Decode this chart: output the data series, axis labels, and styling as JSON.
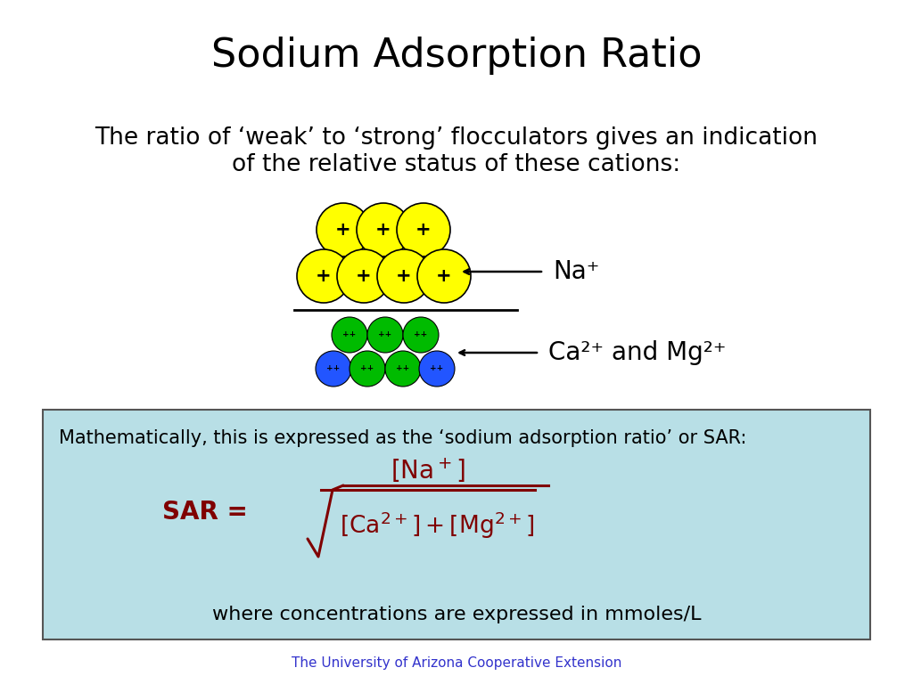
{
  "title": "Sodium Adsorption Ratio",
  "title_fontsize": 32,
  "body_text_line1": "The ratio of ‘weak’ to ‘strong’ flocculators gives an indication",
  "body_text_line2": "of the relative status of these cations:",
  "body_fontsize": 19,
  "na_label": "Na⁺",
  "ca_mg_label": "Ca²⁺ and Mg²⁺",
  "box_bg_color": "#b8dfe6",
  "box_border_color": "#555555",
  "box_text1": "Mathematically, this is expressed as the ‘sodium adsorption ratio’ or SAR:",
  "box_text2": "where concentrations are expressed in mmoles/L",
  "footer_text": "The University of Arizona Cooperative Extension",
  "footer_color": "#3333cc",
  "formula_color": "#800000",
  "yellow_color": "#ffff00",
  "green_color": "#00bb00",
  "blue_color": "#2255ff",
  "background_color": "#ffffff"
}
